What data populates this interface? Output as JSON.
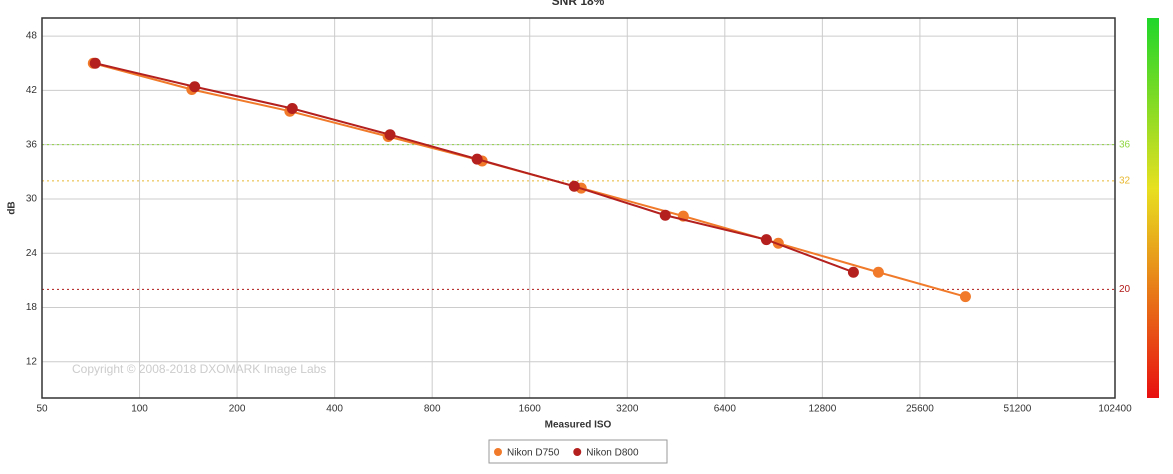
{
  "chart_data": {
    "type": "line",
    "title": "SNR 18%",
    "x_label": "Measured ISO",
    "y_label": "dB",
    "copyright": "Copyright © 2008-2018 DXOMARK Image Labs",
    "xscale": "log2",
    "xlim": [
      50,
      102400
    ],
    "xticks": [
      50,
      100,
      200,
      400,
      800,
      1600,
      3200,
      6400,
      12800,
      25600,
      51200,
      102400
    ],
    "ylim": [
      8,
      50
    ],
    "yticks": [
      12,
      18,
      24,
      30,
      36,
      42,
      48
    ],
    "grid": true,
    "legend": "bottom",
    "thresholds": [
      {
        "value": 36,
        "color": "#8fd63f"
      },
      {
        "value": 32,
        "color": "#e8b830"
      },
      {
        "value": 20,
        "color": "#b01818"
      }
    ],
    "series": [
      {
        "name": "Nikon D750",
        "color": "#f07a2a",
        "x": [
          72,
          145,
          291,
          585,
          1141,
          2307,
          4765,
          9362,
          19060,
          35380
        ],
        "values": [
          45.0,
          42.1,
          39.7,
          36.9,
          34.2,
          31.2,
          28.1,
          25.1,
          21.9,
          19.2
        ]
      },
      {
        "name": "Nikon D800",
        "color": "#b3201e",
        "x": [
          73,
          148,
          296,
          593,
          1101,
          2196,
          4192,
          8600,
          15960
        ],
        "values": [
          45.0,
          42.4,
          40.0,
          37.1,
          34.4,
          31.4,
          28.2,
          25.5,
          21.9
        ]
      }
    ]
  }
}
